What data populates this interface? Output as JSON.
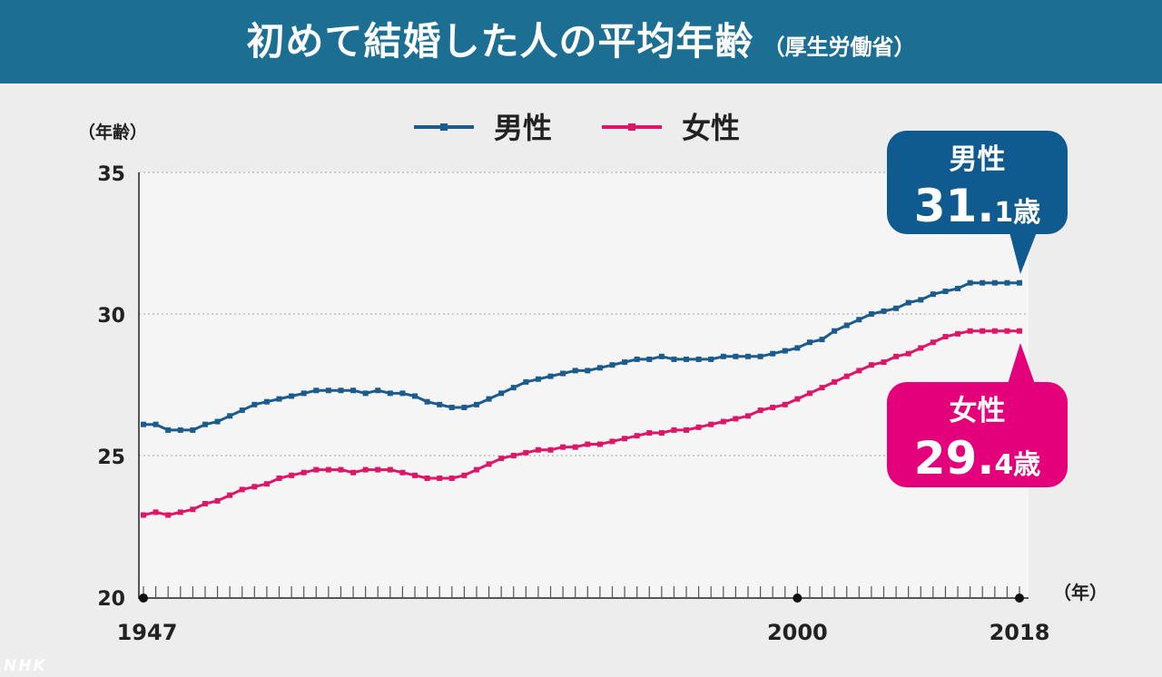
{
  "header": {
    "title": "初めて結婚した人の平均年齢",
    "source": "（厚生労働省）"
  },
  "watermark": "NHK",
  "chart_data": {
    "type": "line",
    "title": "初めて結婚した人の平均年齢",
    "source": "（厚生労働省）",
    "ylabel": "（年齢）",
    "xlabel": "（年）",
    "ylim": [
      20,
      35
    ],
    "xlim": [
      1947,
      2018
    ],
    "yticks": [
      20,
      25,
      30,
      35
    ],
    "xticks": [
      1947,
      2000,
      2018
    ],
    "grid": "horizontal dotted",
    "legend_position": "top-center",
    "series": [
      {
        "name": "男性",
        "color": "#1b5c8c",
        "x": [
          1947,
          1948,
          1949,
          1950,
          1951,
          1952,
          1953,
          1954,
          1955,
          1956,
          1957,
          1958,
          1959,
          1960,
          1961,
          1962,
          1963,
          1964,
          1965,
          1966,
          1967,
          1968,
          1969,
          1970,
          1971,
          1972,
          1973,
          1974,
          1975,
          1976,
          1977,
          1978,
          1979,
          1980,
          1981,
          1982,
          1983,
          1984,
          1985,
          1986,
          1987,
          1988,
          1989,
          1990,
          1991,
          1992,
          1993,
          1994,
          1995,
          1996,
          1997,
          1998,
          1999,
          2000,
          2001,
          2002,
          2003,
          2004,
          2005,
          2006,
          2007,
          2008,
          2009,
          2010,
          2011,
          2012,
          2013,
          2014,
          2015,
          2016,
          2017,
          2018
        ],
        "values": [
          26.1,
          26.1,
          25.9,
          25.9,
          25.9,
          26.1,
          26.2,
          26.4,
          26.6,
          26.8,
          26.9,
          27.0,
          27.1,
          27.2,
          27.3,
          27.3,
          27.3,
          27.3,
          27.2,
          27.3,
          27.2,
          27.2,
          27.1,
          26.9,
          26.8,
          26.7,
          26.7,
          26.8,
          27.0,
          27.2,
          27.4,
          27.6,
          27.7,
          27.8,
          27.9,
          28.0,
          28.0,
          28.1,
          28.2,
          28.3,
          28.4,
          28.4,
          28.5,
          28.4,
          28.4,
          28.4,
          28.4,
          28.5,
          28.5,
          28.5,
          28.5,
          28.6,
          28.7,
          28.8,
          29.0,
          29.1,
          29.4,
          29.6,
          29.8,
          30.0,
          30.1,
          30.2,
          30.4,
          30.5,
          30.7,
          30.8,
          30.9,
          31.1,
          31.1,
          31.1,
          31.1,
          31.1
        ]
      },
      {
        "name": "女性",
        "color": "#dd1767",
        "x": [
          1947,
          1948,
          1949,
          1950,
          1951,
          1952,
          1953,
          1954,
          1955,
          1956,
          1957,
          1958,
          1959,
          1960,
          1961,
          1962,
          1963,
          1964,
          1965,
          1966,
          1967,
          1968,
          1969,
          1970,
          1971,
          1972,
          1973,
          1974,
          1975,
          1976,
          1977,
          1978,
          1979,
          1980,
          1981,
          1982,
          1983,
          1984,
          1985,
          1986,
          1987,
          1988,
          1989,
          1990,
          1991,
          1992,
          1993,
          1994,
          1995,
          1996,
          1997,
          1998,
          1999,
          2000,
          2001,
          2002,
          2003,
          2004,
          2005,
          2006,
          2007,
          2008,
          2009,
          2010,
          2011,
          2012,
          2013,
          2014,
          2015,
          2016,
          2017,
          2018
        ],
        "values": [
          22.9,
          23.0,
          22.9,
          23.0,
          23.1,
          23.3,
          23.4,
          23.6,
          23.8,
          23.9,
          24.0,
          24.2,
          24.3,
          24.4,
          24.5,
          24.5,
          24.5,
          24.4,
          24.5,
          24.5,
          24.5,
          24.4,
          24.3,
          24.2,
          24.2,
          24.2,
          24.3,
          24.5,
          24.7,
          24.9,
          25.0,
          25.1,
          25.2,
          25.2,
          25.3,
          25.3,
          25.4,
          25.4,
          25.5,
          25.6,
          25.7,
          25.8,
          25.8,
          25.9,
          25.9,
          26.0,
          26.1,
          26.2,
          26.3,
          26.4,
          26.6,
          26.7,
          26.8,
          27.0,
          27.2,
          27.4,
          27.6,
          27.8,
          28.0,
          28.2,
          28.3,
          28.5,
          28.6,
          28.8,
          29.0,
          29.2,
          29.3,
          29.4,
          29.4,
          29.4,
          29.4,
          29.4
        ]
      }
    ],
    "annotations": [
      {
        "series": "男性",
        "label": "男性",
        "value_int": "31.",
        "value_dec": "1",
        "unit": "歳",
        "color": "#0f5a8f"
      },
      {
        "series": "女性",
        "label": "女性",
        "value_int": "29.",
        "value_dec": "4",
        "unit": "歳",
        "color": "#e4007a"
      }
    ]
  }
}
